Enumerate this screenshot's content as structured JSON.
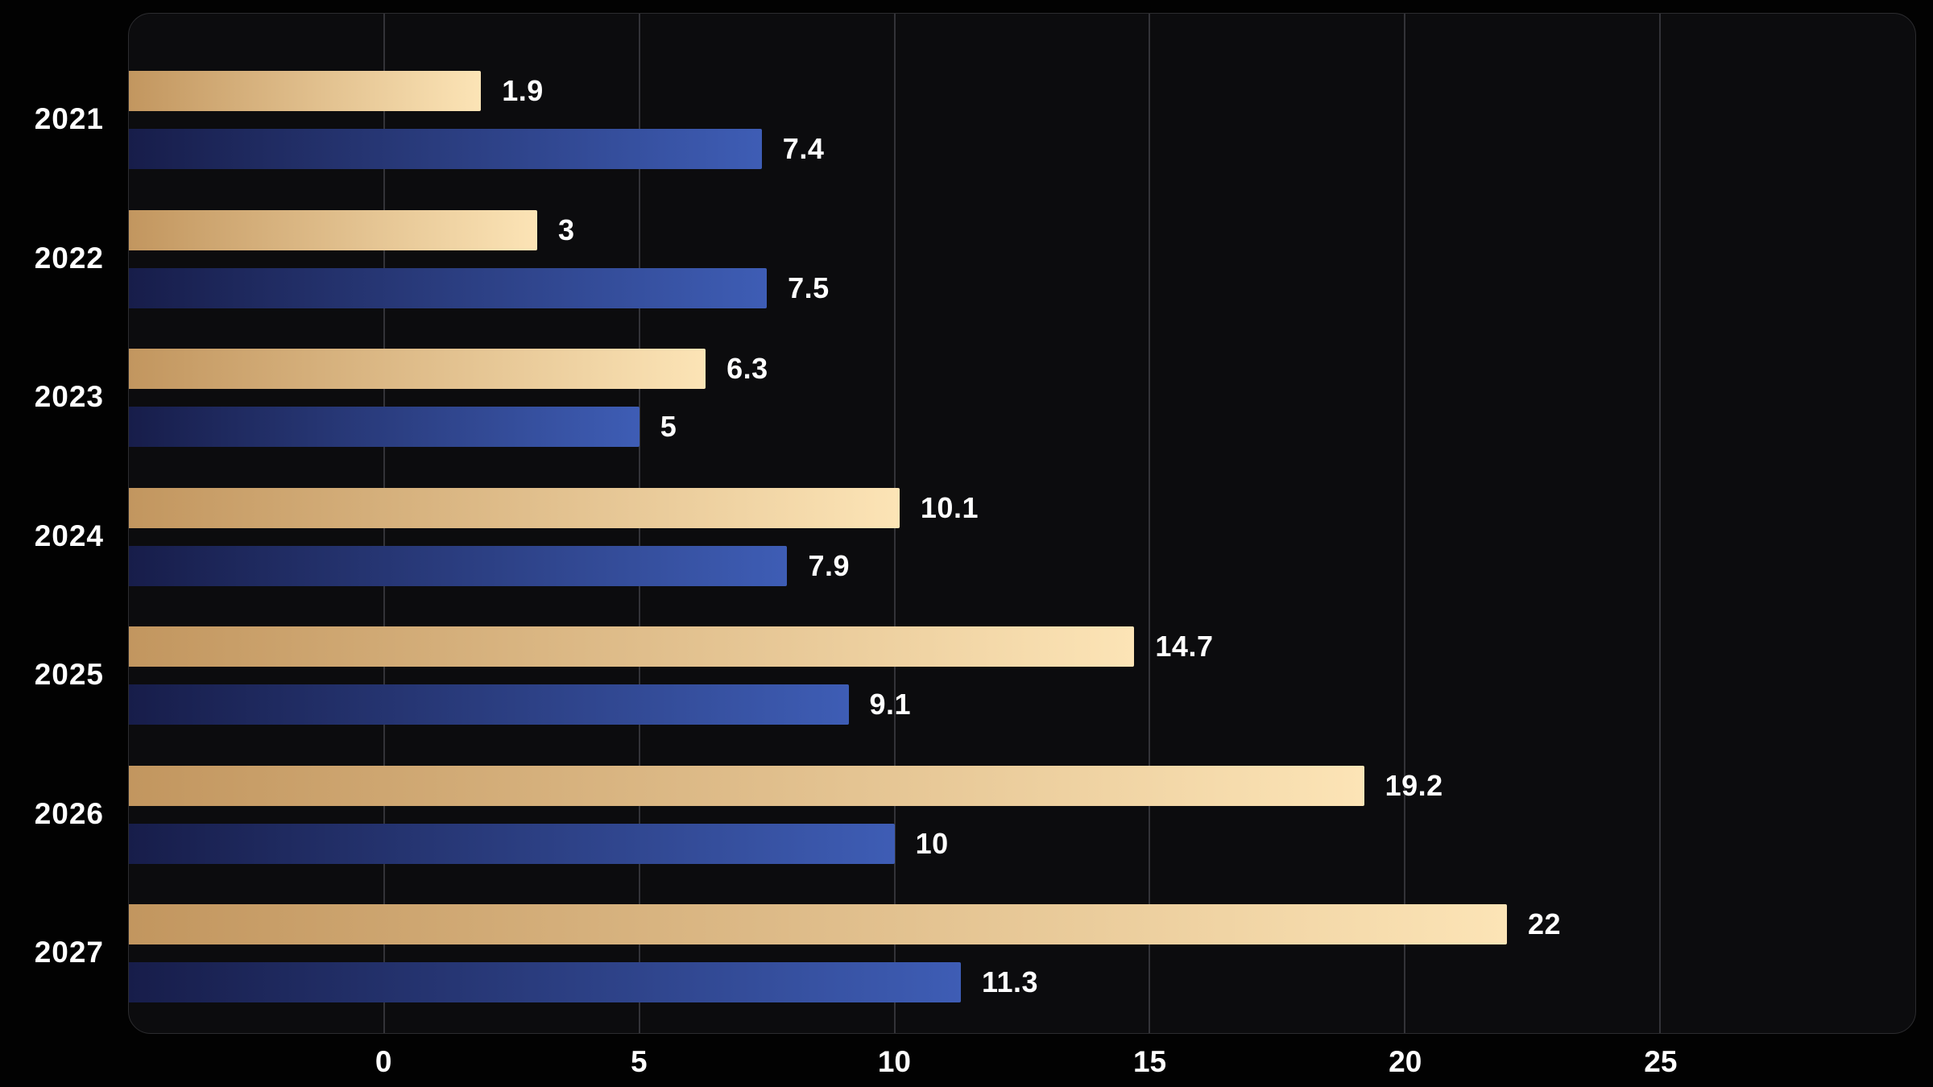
{
  "colors": {
    "page_background": "#020202",
    "panel_background": "#0c0c0e",
    "panel_border": "#2c2c2f",
    "gridline": "#333338",
    "label_text": "#ffffff",
    "gold_gradient_start": "#c2965f",
    "gold_gradient_end": "#fce4b6",
    "navy_gradient_start": "#171d4a",
    "navy_gradient_end": "#3e5db5"
  },
  "chart_data": {
    "type": "bar",
    "orientation": "horizontal",
    "title": "",
    "xlabel": "",
    "ylabel": "",
    "grid": true,
    "legend": false,
    "categories": [
      "2021",
      "2022",
      "2023",
      "2024",
      "2025",
      "2026",
      "2027"
    ],
    "series": [
      {
        "name": "gold",
        "color_start": "#c2965f",
        "color_end": "#fce4b6",
        "values": [
          1.9,
          3,
          6.3,
          10.1,
          14.7,
          19.2,
          22
        ],
        "labels": [
          "1.9",
          "3",
          "6.3",
          "10.1",
          "14.7",
          "19.2",
          "22"
        ]
      },
      {
        "name": "navy",
        "color_start": "#171d4a",
        "color_end": "#3e5db5",
        "values": [
          7.4,
          7.5,
          5,
          7.9,
          9.1,
          10,
          11.3
        ],
        "labels": [
          "7.4",
          "7.5",
          "5",
          "7.9",
          "9.1",
          "10",
          "11.3"
        ]
      }
    ],
    "x_ticks": [
      0,
      5,
      10,
      15,
      20,
      25
    ],
    "x_tick_labels": [
      "0",
      "5",
      "10",
      "15",
      "20",
      "25"
    ],
    "xlim": [
      -5,
      30
    ],
    "bar_base": -5
  }
}
